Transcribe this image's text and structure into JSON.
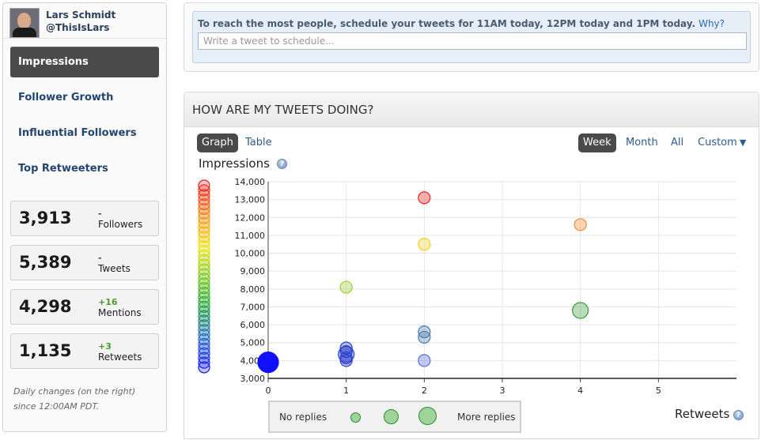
{
  "profile": {
    "name": "Lars Schmidt",
    "handle": "@ThisIsLars"
  },
  "nav": {
    "items": [
      {
        "label": "Impressions",
        "active": true
      },
      {
        "label": "Follower Growth",
        "active": false
      },
      {
        "label": "Influential Followers",
        "active": false
      },
      {
        "label": "Top Retweeters",
        "active": false
      }
    ]
  },
  "stats": [
    {
      "value": "3,913",
      "change": "-",
      "label": "Followers"
    },
    {
      "value": "5,389",
      "change": "-",
      "label": "Tweets"
    },
    {
      "value": "4,298",
      "change": "+16",
      "label": "Mentions"
    },
    {
      "value": "1,135",
      "change": "+3",
      "label": "Retweets"
    }
  ],
  "sidebar_note": "Daily changes (on the right) since 12:00AM PDT.",
  "schedule": {
    "message": "To reach the most people, schedule your tweets for 11AM today, 12PM today and 1PM today.",
    "why_link": "Why?",
    "placeholder": "Write a tweet to schedule..."
  },
  "panel": {
    "title": "HOW ARE MY TWEETS DOING?",
    "view_tabs": [
      "Graph",
      "Table"
    ],
    "active_view": "Graph",
    "range_tabs": [
      "Week",
      "Month",
      "All",
      "Custom"
    ],
    "active_range": "Week",
    "y_axis_label": "Impressions",
    "x_axis_label": "Retweets",
    "help_glyph": "?"
  },
  "legend": {
    "left": "No replies",
    "right": "More replies",
    "dot_color": "#9ed39a"
  },
  "chart_data": {
    "type": "scatter",
    "xlabel": "Retweets",
    "ylabel": "Impressions",
    "xlim": [
      0,
      6
    ],
    "ylim": [
      3000,
      14000
    ],
    "x_ticks": [
      0,
      1,
      2,
      3,
      4,
      5
    ],
    "x_tick_labels": [
      "0",
      "1",
      "2",
      "3",
      "4",
      "5"
    ],
    "y_ticks": [
      3000,
      4000,
      5000,
      6000,
      7000,
      8000,
      9000,
      10000,
      11000,
      12000,
      13000,
      14000
    ],
    "y_tick_labels": [
      "3,000",
      "4,000",
      "5,000",
      "6,000",
      "7,000",
      "8,000",
      "9,000",
      "10,000",
      "11,000",
      "12,000",
      "13,000",
      "14,000"
    ],
    "grid": true,
    "color_scale": "impressions (blue low → red high)",
    "size_encoding": "replies",
    "points": [
      {
        "x": 0,
        "y": 3900,
        "replies": 3,
        "color": "#1010ff"
      },
      {
        "x": 1,
        "y": 8100,
        "replies": 1,
        "color": "#9acd32"
      },
      {
        "x": 1,
        "y": 4700,
        "replies": 1,
        "color": "#2a40c8"
      },
      {
        "x": 1,
        "y": 4500,
        "replies": 1,
        "color": "#2a40c8"
      },
      {
        "x": 1,
        "y": 4350,
        "replies": 2,
        "color": "#2a40c8"
      },
      {
        "x": 1,
        "y": 4150,
        "replies": 1,
        "color": "#3040d0"
      },
      {
        "x": 1,
        "y": 4000,
        "replies": 1,
        "color": "#3040d0"
      },
      {
        "x": 2,
        "y": 13100,
        "replies": 1,
        "color": "#ee2222"
      },
      {
        "x": 2,
        "y": 10500,
        "replies": 1,
        "color": "#f0d020"
      },
      {
        "x": 2,
        "y": 5600,
        "replies": 1,
        "color": "#4a7aa8"
      },
      {
        "x": 2,
        "y": 5300,
        "replies": 1,
        "color": "#4a7aa8"
      },
      {
        "x": 2,
        "y": 4000,
        "replies": 1,
        "color": "#5a6ae0"
      },
      {
        "x": 4,
        "y": 11600,
        "replies": 1,
        "color": "#f08a30"
      },
      {
        "x": 4,
        "y": 6800,
        "replies": 2,
        "color": "#3a9a3a"
      }
    ]
  }
}
